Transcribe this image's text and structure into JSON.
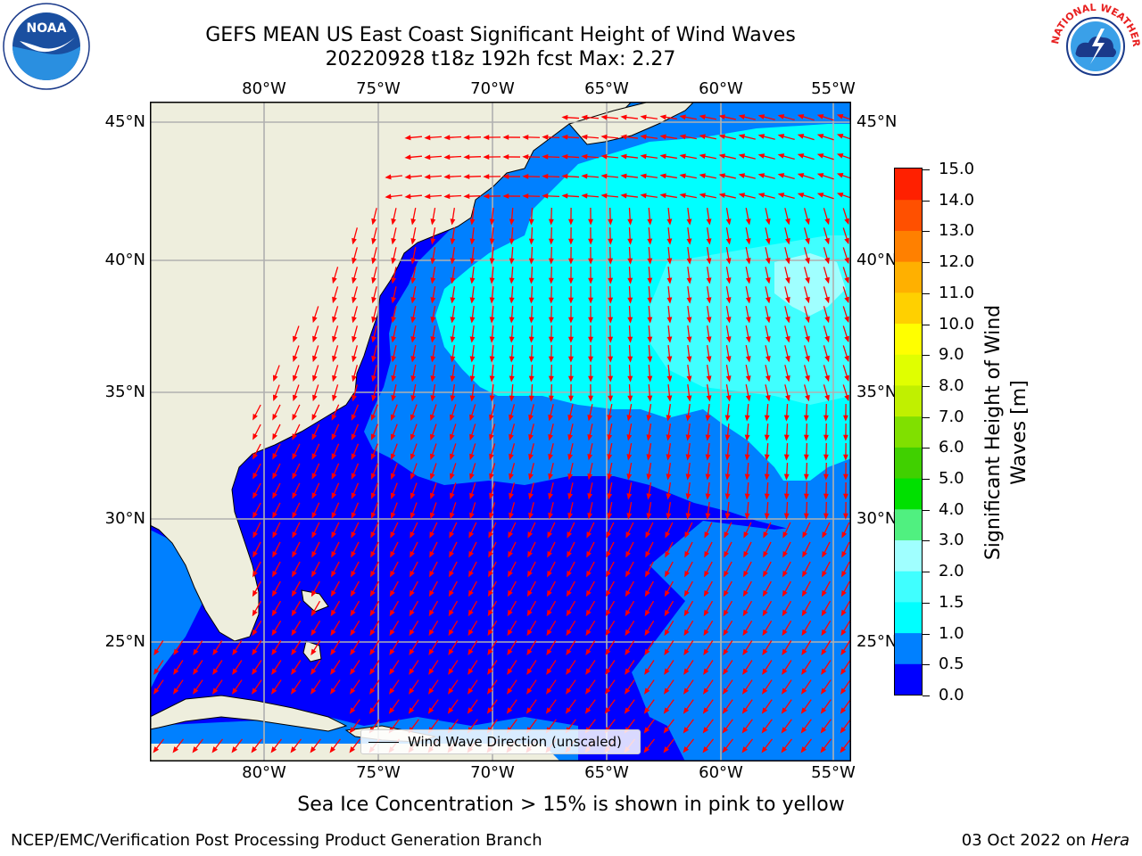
{
  "title": {
    "line1": "GEFS MEAN US East Coast Significant Height of Wind Waves",
    "line2": "20220928 t18z 192h fcst   Max: 2.27"
  },
  "logos": {
    "left": "noaa-logo",
    "right": "national-weather-service-logo",
    "nws_text": "NATIONAL WEATHER SERVICE"
  },
  "map": {
    "projection": "plate-carree",
    "lon_range": [
      -85,
      -54
    ],
    "lat_range": [
      20.5,
      46
    ],
    "lon_ticks": [
      "80°W",
      "75°W",
      "70°W",
      "65°W",
      "60°W",
      "55°W"
    ],
    "lat_ticks": [
      "45°N",
      "40°N",
      "35°N",
      "30°N",
      "25°N"
    ],
    "gridlines": true,
    "land_color": "#eeeedd",
    "arrow_color": "#ff0000",
    "legend_label": "Wind Wave Direction (unscaled)"
  },
  "colorbar": {
    "title": "Significant Height of Wind Waves [m]",
    "tick_labels": [
      "0.0",
      "0.5",
      "1.0",
      "1.5",
      "2.0",
      "3.0",
      "4.0",
      "5.0",
      "6.0",
      "7.0",
      "8.0",
      "9.0",
      "10.0",
      "11.0",
      "12.0",
      "13.0",
      "14.0",
      "15.0"
    ],
    "colors": [
      "#0000ff",
      "#0080ff",
      "#00ffff",
      "#40ffff",
      "#a0ffff",
      "#50f080",
      "#00e000",
      "#40d000",
      "#80e000",
      "#c0f000",
      "#e0ff00",
      "#ffff00",
      "#ffd000",
      "#ffb000",
      "#ff8000",
      "#ff5000",
      "#ff2000"
    ]
  },
  "footer": {
    "sea_ice_note": "Sea Ice Concentration > 15% is shown in pink to yellow",
    "credit": "NCEP/EMC/Verification Post Processing Product Generation Branch",
    "date": "03 Oct 2022 on ",
    "machine": "Hera"
  }
}
